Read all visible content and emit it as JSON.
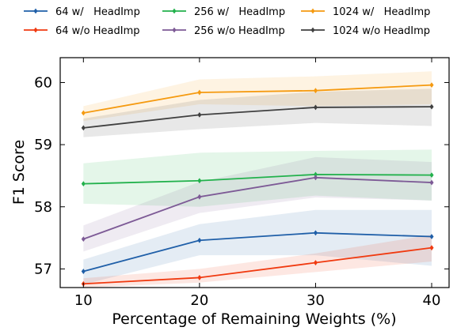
{
  "chart_data": {
    "type": "line",
    "title": "",
    "xlabel": "Percentage of Remaining Weights (%)",
    "ylabel": "F1 Score",
    "x": [
      10,
      20,
      30,
      40
    ],
    "xlim": [
      8,
      41.5
    ],
    "ylim": [
      56.7,
      60.4
    ],
    "xticks": [
      10,
      20,
      30,
      40
    ],
    "yticks": [
      57,
      58,
      59,
      60
    ],
    "grid": false,
    "legend_position": "top, above plot, 3 columns",
    "series": [
      {
        "name": "64 w/   HeadImp",
        "color": "#1f5fa8",
        "values": [
          56.96,
          57.46,
          57.58,
          57.52
        ],
        "band_lower": [
          56.75,
          57.22,
          57.22,
          57.05
        ],
        "band_upper": [
          57.15,
          57.72,
          57.95,
          57.95
        ]
      },
      {
        "name": "64 w/o HeadImp",
        "color": "#f03a10",
        "values": [
          56.76,
          56.86,
          57.1,
          57.34
        ],
        "band_lower": [
          56.7,
          56.78,
          56.95,
          57.12
        ],
        "band_upper": [
          56.85,
          57.0,
          57.25,
          57.55
        ]
      },
      {
        "name": "256 w/   HeadImp",
        "color": "#22b14c",
        "values": [
          58.37,
          58.42,
          58.52,
          58.51
        ],
        "band_lower": [
          58.05,
          58.0,
          58.18,
          58.1
        ],
        "band_upper": [
          58.7,
          58.87,
          58.9,
          58.92
        ]
      },
      {
        "name": "256 w/o HeadImp",
        "color": "#7d5a96",
        "values": [
          57.48,
          58.16,
          58.47,
          58.39
        ],
        "band_lower": [
          57.28,
          57.9,
          58.15,
          58.1
        ],
        "band_upper": [
          57.7,
          58.4,
          58.8,
          58.72
        ]
      },
      {
        "name": "1024 w/   HeadImp",
        "color": "#f59a10",
        "values": [
          59.51,
          59.84,
          59.87,
          59.96
        ],
        "band_lower": [
          59.38,
          59.65,
          59.62,
          59.65
        ],
        "band_upper": [
          59.62,
          60.05,
          60.1,
          60.18
        ]
      },
      {
        "name": "1024 w/o HeadImp",
        "color": "#404040",
        "values": [
          59.27,
          59.48,
          59.6,
          59.61
        ],
        "band_lower": [
          59.12,
          59.25,
          59.35,
          59.3
        ],
        "band_upper": [
          59.42,
          59.72,
          59.85,
          59.9
        ]
      }
    ]
  }
}
